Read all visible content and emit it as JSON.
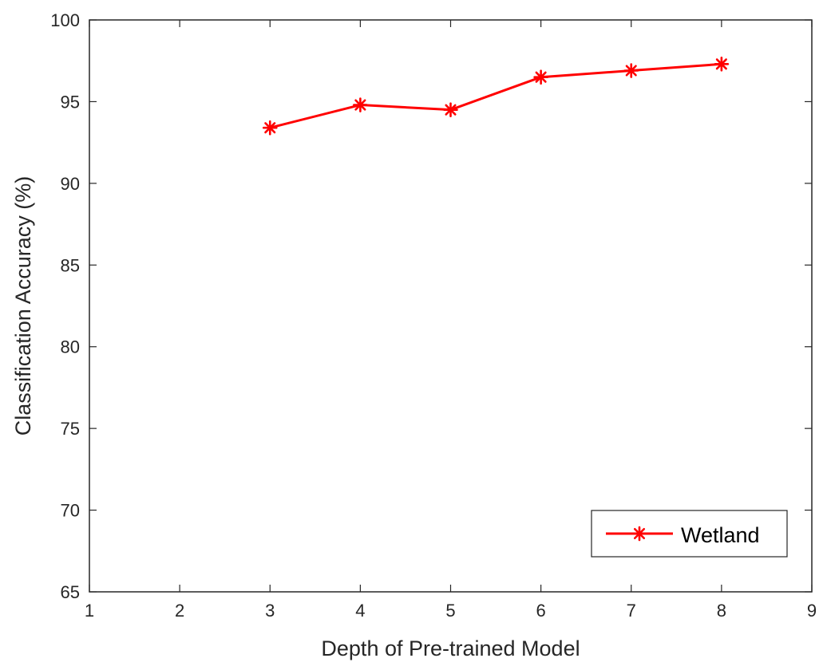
{
  "chart_data": {
    "type": "line",
    "title": "",
    "xlabel": "Depth of Pre-trained Model",
    "ylabel": "Classification Accuracy (%)",
    "xlim": [
      1,
      9
    ],
    "ylim": [
      65,
      100
    ],
    "xticks": [
      1,
      2,
      3,
      4,
      5,
      6,
      7,
      8,
      9
    ],
    "yticks": [
      65,
      70,
      75,
      80,
      85,
      90,
      95,
      100
    ],
    "grid": false,
    "legend_position": "bottom-right",
    "series": [
      {
        "name": "Wetland",
        "color": "#ff0000",
        "marker": "asterisk",
        "x": [
          3,
          4,
          5,
          6,
          7,
          8
        ],
        "y": [
          93.4,
          94.8,
          94.5,
          96.5,
          96.9,
          97.3
        ]
      }
    ]
  }
}
